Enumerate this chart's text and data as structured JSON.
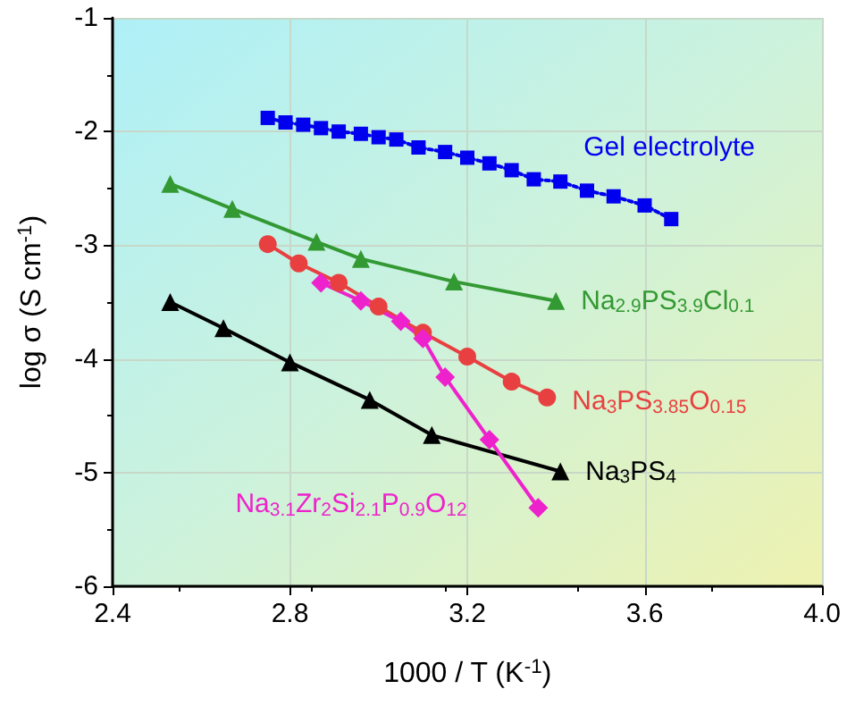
{
  "chart_data": {
    "type": "line",
    "xlabel": "1000 / T (K$^{-1}$)",
    "ylabel": "log σ (S cm$^{-1}$)",
    "xlim": [
      2.4,
      4.0
    ],
    "xticks": [
      {
        "value": 2.4,
        "label": "2.4"
      },
      {
        "value": 2.8,
        "label": "2.8"
      },
      {
        "value": 3.2,
        "label": "3.2"
      },
      {
        "value": 3.6,
        "label": "3.6"
      },
      {
        "value": 4.0,
        "label": "4.0"
      }
    ],
    "ylim": [
      -6,
      -1
    ],
    "yticks": [
      -6,
      -5,
      -4,
      -3,
      -2,
      -1
    ],
    "grid": true,
    "legend": false,
    "series": [
      {
        "name": "Gel electrolyte",
        "color": "#0000ee",
        "marker": "square",
        "line_style": "dotted",
        "x": [
          2.75,
          2.79,
          2.83,
          2.87,
          2.91,
          2.96,
          3.0,
          3.04,
          3.09,
          3.15,
          3.2,
          3.25,
          3.3,
          3.35,
          3.41,
          3.47,
          3.53,
          3.6,
          3.66
        ],
        "values": [
          -1.88,
          -1.92,
          -1.94,
          -1.97,
          -2.0,
          -2.02,
          -2.05,
          -2.07,
          -2.14,
          -2.18,
          -2.23,
          -2.28,
          -2.34,
          -2.42,
          -2.44,
          -2.52,
          -2.57,
          -2.65,
          -2.77
        ]
      },
      {
        "name": "Na$_{2.9}$PS$_{3.9}$Cl$_{0.1}$",
        "color": "#339933",
        "marker": "triangle",
        "line_style": "solid",
        "x": [
          2.53,
          2.67,
          2.86,
          2.96,
          3.17,
          3.4
        ],
        "values": [
          -2.46,
          -2.68,
          -2.97,
          -3.12,
          -3.32,
          -3.49
        ]
      },
      {
        "name": "Na$_{3}$PS$_{3.85}$O$_{0.15}$",
        "color": "#e84040",
        "marker": "circle",
        "line_style": "solid",
        "x": [
          2.75,
          2.82,
          2.91,
          3.0,
          3.1,
          3.2,
          3.3,
          3.38
        ],
        "values": [
          -2.99,
          -3.16,
          -3.33,
          -3.54,
          -3.77,
          -3.98,
          -4.2,
          -4.34
        ]
      },
      {
        "name": "Na$_{3}$PS$_{4}$",
        "color": "#000000",
        "marker": "triangle",
        "line_style": "solid",
        "x": [
          2.53,
          2.65,
          2.8,
          2.98,
          3.12,
          3.41
        ],
        "values": [
          -3.5,
          -3.73,
          -4.03,
          -4.36,
          -4.67,
          -4.99
        ]
      },
      {
        "name": "Na$_{3.1}$Zr$_{2}$Si$_{2.1}$P$_{0.9}$O$_{12}$",
        "color": "#ee22cc",
        "marker": "diamond",
        "line_style": "solid",
        "x": [
          2.87,
          2.96,
          3.05,
          3.1,
          3.15,
          3.25,
          3.36
        ],
        "values": [
          -3.33,
          -3.49,
          -3.67,
          -3.82,
          -4.16,
          -4.71,
          -5.31
        ]
      }
    ]
  }
}
